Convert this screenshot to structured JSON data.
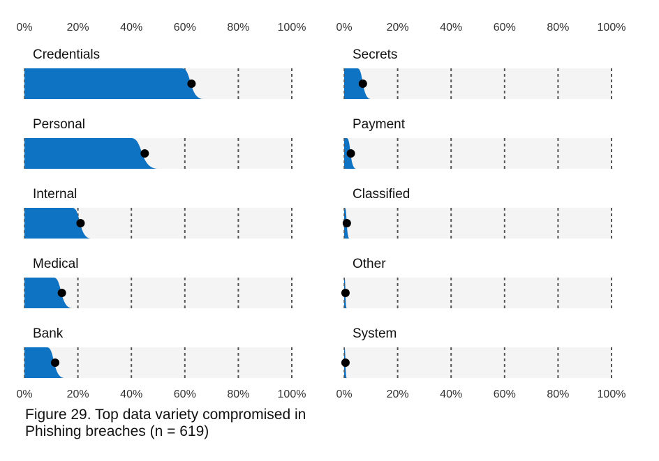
{
  "figure": {
    "caption": "Figure 29. Top data variety compromised in Phishing breaches (n = 619)"
  },
  "colors": {
    "bar": "#0f73c4",
    "track": "#f4f4f4",
    "dot": "#000000",
    "grid": "#555555"
  },
  "chart_data": {
    "type": "bar",
    "orientation": "horizontal",
    "note": "Blue band shows interval with soft right edge; black dot marks point estimate.",
    "xlim": [
      0,
      100
    ],
    "ticks": [
      "0%",
      "20%",
      "40%",
      "60%",
      "80%",
      "100%"
    ],
    "panels": [
      {
        "column": "left",
        "categories": [
          "Credentials",
          "Personal",
          "Internal",
          "Medical",
          "Bank"
        ],
        "values": [
          62.5,
          45,
          21,
          14,
          11.5
        ],
        "bar_flat_end": [
          59,
          40,
          18,
          11,
          8.5
        ],
        "bar_full_end": [
          67,
          50,
          25,
          18,
          15
        ]
      },
      {
        "column": "right",
        "categories": [
          "Secrets",
          "Payment",
          "Classified",
          "Other",
          "System"
        ],
        "values": [
          7,
          2.5,
          1,
          0.5,
          0.5
        ],
        "bar_flat_end": [
          5,
          1,
          0.3,
          0.15,
          0.15
        ],
        "bar_full_end": [
          10,
          4.5,
          2,
          1,
          1
        ]
      }
    ]
  }
}
